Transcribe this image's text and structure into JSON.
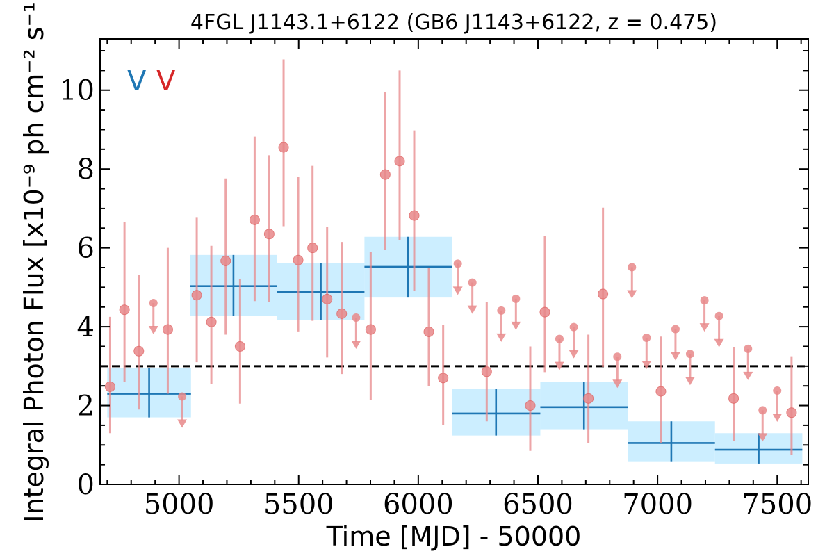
{
  "chart_data": {
    "type": "scatter",
    "title": "4FGL J1143.1+6122 (GB6 J1143+6122, z = 0.475)",
    "xlabel": "Time [MJD] - 50000",
    "ylabel": "Integral Photon Flux [x10⁻⁹ ph cm⁻² s⁻¹]",
    "xlim": [
      4670,
      7630
    ],
    "ylim": [
      0,
      11.3
    ],
    "x_ticks": [
      5000,
      5500,
      6000,
      6500,
      7000,
      7500
    ],
    "y_ticks": [
      0,
      2,
      4,
      6,
      8,
      10
    ],
    "legend": {
      "placement": "top-left",
      "entries": [
        {
          "label": "V",
          "color": "#1f77b4"
        },
        {
          "label": "V",
          "color": "#d62728"
        }
      ]
    },
    "reference_line": {
      "y": 3.0,
      "style": "dashed",
      "color": "#000000"
    },
    "colors": {
      "long_bins": "#1f77b4",
      "long_band": "#cceeff",
      "short_bins": "#e8888a"
    },
    "long_bins": [
      {
        "x0": 4700,
        "x1": 5050,
        "y": 2.3,
        "ylo": 1.7,
        "yhi": 2.95
      },
      {
        "x0": 5045,
        "x1": 5410,
        "y": 5.03,
        "ylo": 4.28,
        "yhi": 5.82
      },
      {
        "x0": 5410,
        "x1": 5775,
        "y": 4.88,
        "ylo": 4.17,
        "yhi": 5.62
      },
      {
        "x0": 5775,
        "x1": 6140,
        "y": 5.52,
        "ylo": 4.74,
        "yhi": 6.28
      },
      {
        "x0": 6140,
        "x1": 6510,
        "y": 1.8,
        "ylo": 1.24,
        "yhi": 2.42
      },
      {
        "x0": 6510,
        "x1": 6875,
        "y": 1.96,
        "ylo": 1.4,
        "yhi": 2.6
      },
      {
        "x0": 6875,
        "x1": 7240,
        "y": 1.05,
        "ylo": 0.57,
        "yhi": 1.6
      },
      {
        "x0": 7240,
        "x1": 7605,
        "y": 0.88,
        "ylo": 0.53,
        "yhi": 1.3
      }
    ],
    "short_points": [
      {
        "x": 4712,
        "y": 2.48,
        "ylo": 1.3,
        "yhi": 4.25
      },
      {
        "x": 4772,
        "y": 4.43,
        "ylo": 2.6,
        "yhi": 6.65
      },
      {
        "x": 4832,
        "y": 3.38,
        "ylo": 1.9,
        "yhi": 5.32
      },
      {
        "x": 4893,
        "y": 4.6,
        "upper_limit": true
      },
      {
        "x": 4953,
        "y": 3.93,
        "ylo": 2.3,
        "yhi": 6.0
      },
      {
        "x": 5013,
        "y": 2.23,
        "upper_limit": true
      },
      {
        "x": 5074,
        "y": 4.8,
        "ylo": 3.1,
        "yhi": 6.78
      },
      {
        "x": 5135,
        "y": 4.12,
        "ylo": 2.55,
        "yhi": 6.05
      },
      {
        "x": 5195,
        "y": 5.67,
        "ylo": 3.8,
        "yhi": 7.76
      },
      {
        "x": 5255,
        "y": 3.5,
        "ylo": 2.05,
        "yhi": 5.2
      },
      {
        "x": 5316,
        "y": 6.71,
        "ylo": 4.65,
        "yhi": 8.82
      },
      {
        "x": 5377,
        "y": 6.35,
        "ylo": 4.62,
        "yhi": 8.35
      },
      {
        "x": 5437,
        "y": 8.55,
        "ylo": 6.55,
        "yhi": 10.78
      },
      {
        "x": 5498,
        "y": 5.69,
        "ylo": 3.88,
        "yhi": 7.8
      },
      {
        "x": 5558,
        "y": 6.0,
        "ylo": 4.15,
        "yhi": 8.08
      },
      {
        "x": 5619,
        "y": 4.7,
        "ylo": 3.22,
        "yhi": 6.53
      },
      {
        "x": 5680,
        "y": 4.33,
        "ylo": 2.8,
        "yhi": 6.15
      },
      {
        "x": 5740,
        "y": 4.23,
        "upper_limit": true
      },
      {
        "x": 5801,
        "y": 3.93,
        "ylo": 2.15,
        "yhi": 5.9
      },
      {
        "x": 5862,
        "y": 7.86,
        "ylo": 5.95,
        "yhi": 9.95
      },
      {
        "x": 5922,
        "y": 8.2,
        "ylo": 6.2,
        "yhi": 10.5
      },
      {
        "x": 5983,
        "y": 6.82,
        "ylo": 4.9,
        "yhi": 8.98
      },
      {
        "x": 6044,
        "y": 3.87,
        "ylo": 2.5,
        "yhi": 5.5
      },
      {
        "x": 6104,
        "y": 2.7,
        "ylo": 1.5,
        "yhi": 4.05
      },
      {
        "x": 6165,
        "y": 5.6,
        "upper_limit": true
      },
      {
        "x": 6226,
        "y": 5.12,
        "upper_limit": true
      },
      {
        "x": 6286,
        "y": 2.86,
        "ylo": 1.6,
        "yhi": 4.63
      },
      {
        "x": 6347,
        "y": 4.41,
        "upper_limit": true
      },
      {
        "x": 6408,
        "y": 4.71,
        "upper_limit": true
      },
      {
        "x": 6468,
        "y": 2.0,
        "ylo": 0.85,
        "yhi": 3.5
      },
      {
        "x": 6529,
        "y": 4.37,
        "ylo": 2.85,
        "yhi": 6.3
      },
      {
        "x": 6590,
        "y": 3.69,
        "upper_limit": true
      },
      {
        "x": 6650,
        "y": 3.99,
        "upper_limit": true
      },
      {
        "x": 6711,
        "y": 2.18,
        "ylo": 1.05,
        "yhi": 3.8
      },
      {
        "x": 6772,
        "y": 4.83,
        "ylo": 2.98,
        "yhi": 7.02
      },
      {
        "x": 6832,
        "y": 3.24,
        "upper_limit": true
      },
      {
        "x": 6893,
        "y": 5.51,
        "upper_limit": true
      },
      {
        "x": 6954,
        "y": 3.72,
        "upper_limit": true
      },
      {
        "x": 7014,
        "y": 2.36,
        "ylo": 1.05,
        "yhi": 3.75
      },
      {
        "x": 7075,
        "y": 3.94,
        "upper_limit": true
      },
      {
        "x": 7136,
        "y": 3.31,
        "upper_limit": true
      },
      {
        "x": 7196,
        "y": 4.67,
        "upper_limit": true
      },
      {
        "x": 7257,
        "y": 4.27,
        "upper_limit": true
      },
      {
        "x": 7318,
        "y": 2.18,
        "ylo": 1.1,
        "yhi": 3.48
      },
      {
        "x": 7378,
        "y": 3.44,
        "upper_limit": true
      },
      {
        "x": 7439,
        "y": 1.88,
        "upper_limit": true
      },
      {
        "x": 7500,
        "y": 2.38,
        "upper_limit": true
      },
      {
        "x": 7560,
        "y": 1.82,
        "ylo": 0.75,
        "yhi": 3.25
      }
    ]
  }
}
